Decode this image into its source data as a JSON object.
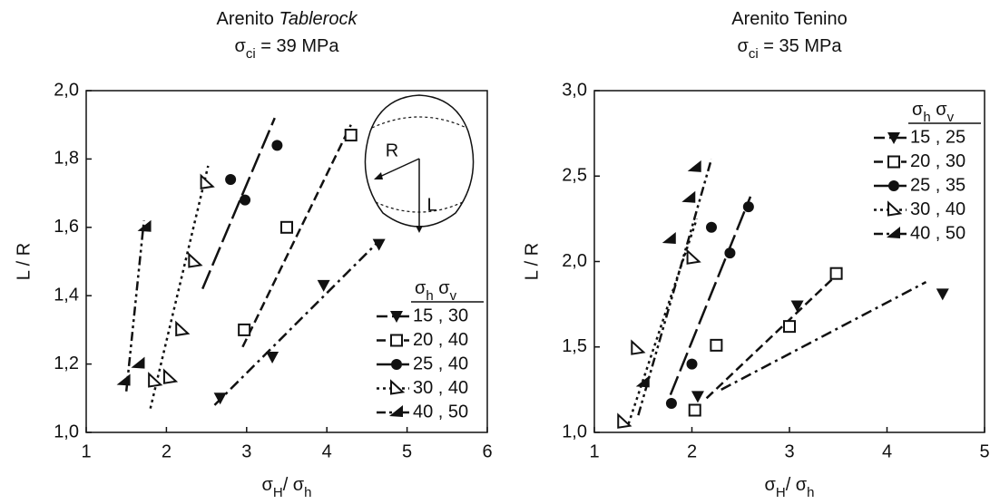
{
  "chart_data": [
    {
      "type": "scatter",
      "title": [
        {
          "text": "Arenito "
        },
        {
          "text": "Tablerock",
          "italic": true
        }
      ],
      "subtitle": [
        {
          "text": "σ"
        },
        {
          "text": "ci",
          "sub": true
        },
        {
          "text": " = 39 MPa"
        }
      ],
      "xlabel": [
        {
          "text": "σ"
        },
        {
          "text": "H",
          "sub": true
        },
        {
          "text": "/ σ"
        },
        {
          "text": "h",
          "sub": true
        }
      ],
      "ylabel": "L / R",
      "xlim": [
        1,
        6
      ],
      "ylim": [
        1.0,
        2.0
      ],
      "xticks": [
        1,
        2,
        3,
        4,
        5,
        6
      ],
      "yticks": [
        {
          "value": 1.0,
          "label": "1,0"
        },
        {
          "value": 1.2,
          "label": "1,2"
        },
        {
          "value": 1.4,
          "label": "1,4"
        },
        {
          "value": 1.6,
          "label": "1,6"
        },
        {
          "value": 1.8,
          "label": "1,8"
        },
        {
          "value": 2.0,
          "label": "2,0"
        }
      ],
      "legend_title": [
        {
          "text": "σ"
        },
        {
          "text": "h",
          "sub": true
        },
        {
          "text": " σ"
        },
        {
          "text": "v",
          "sub": true
        }
      ],
      "legend_loc": "lower right",
      "inset": {
        "labels": [
          "R",
          "L"
        ]
      },
      "series": [
        {
          "name": "15 , 30",
          "color": "#111111",
          "marker": "tri-down",
          "dash": "12,5,3,5",
          "x": [
            2.67,
            3.32,
            3.96,
            4.65
          ],
          "y": [
            1.1,
            1.22,
            1.43,
            1.55
          ],
          "line_x": [
            2.6,
            4.65
          ],
          "line_y": [
            1.08,
            1.56
          ]
        },
        {
          "name": "20 , 40",
          "color": "#111111",
          "marker": "square",
          "dash": "10,5",
          "x": [
            2.97,
            3.5,
            4.3
          ],
          "y": [
            1.3,
            1.6,
            1.87
          ],
          "line_x": [
            2.95,
            4.3
          ],
          "line_y": [
            1.25,
            1.9
          ]
        },
        {
          "name": "25 , 40",
          "color": "#111111",
          "marker": "circle",
          "dash": "22,6",
          "x": [
            2.8,
            2.98,
            3.38
          ],
          "y": [
            1.74,
            1.68,
            1.84
          ],
          "line_x": [
            2.45,
            3.35
          ],
          "line_y": [
            1.42,
            1.92
          ]
        },
        {
          "name": "30 , 40",
          "color": "#111111",
          "marker": "tri-right",
          "dash": "3,4",
          "x": [
            1.85,
            2.04,
            2.19,
            2.35,
            2.5
          ],
          "y": [
            1.15,
            1.16,
            1.3,
            1.5,
            1.73
          ],
          "line_x": [
            1.8,
            2.52
          ],
          "line_y": [
            1.07,
            1.78
          ]
        },
        {
          "name": "40 , 50",
          "color": "#111111",
          "marker": "tri-left",
          "dash": "10,4,3,4,3,4",
          "x": [
            1.47,
            1.65,
            1.73
          ],
          "y": [
            1.15,
            1.2,
            1.6
          ],
          "line_x": [
            1.5,
            1.72
          ],
          "line_y": [
            1.12,
            1.62
          ]
        }
      ]
    },
    {
      "type": "scatter",
      "title": [
        {
          "text": "Arenito Tenino"
        }
      ],
      "subtitle": [
        {
          "text": "σ"
        },
        {
          "text": "ci",
          "sub": true
        },
        {
          "text": " = 35 MPa"
        }
      ],
      "xlabel": [
        {
          "text": "σ"
        },
        {
          "text": "H",
          "sub": true
        },
        {
          "text": "/ σ"
        },
        {
          "text": "h",
          "sub": true
        }
      ],
      "ylabel": "L / R",
      "xlim": [
        1,
        5
      ],
      "ylim": [
        1.0,
        3.0
      ],
      "xticks": [
        1,
        2,
        3,
        4,
        5
      ],
      "yticks": [
        {
          "value": 1.0,
          "label": "1,0"
        },
        {
          "value": 1.5,
          "label": "1,5"
        },
        {
          "value": 2.0,
          "label": "2,0"
        },
        {
          "value": 2.5,
          "label": "2,5"
        },
        {
          "value": 3.0,
          "label": "3,0"
        }
      ],
      "legend_title": [
        {
          "text": "σ"
        },
        {
          "text": "h",
          "sub": true
        },
        {
          "text": " σ"
        },
        {
          "text": "v",
          "sub": true
        }
      ],
      "legend_loc": "upper right",
      "series": [
        {
          "name": "15 , 25",
          "color": "#111111",
          "marker": "tri-down",
          "dash": "12,5,3,5",
          "x": [
            2.06,
            3.08,
            4.57
          ],
          "y": [
            1.21,
            1.74,
            1.81
          ],
          "line_x": [
            2.3,
            4.4
          ],
          "line_y": [
            1.25,
            1.88
          ]
        },
        {
          "name": "20 , 30",
          "color": "#111111",
          "marker": "square",
          "dash": "10,5",
          "x": [
            2.03,
            2.25,
            3.0,
            3.48
          ],
          "y": [
            1.13,
            1.51,
            1.62,
            1.93
          ],
          "line_x": [
            2.15,
            3.5
          ],
          "line_y": [
            1.2,
            1.93
          ]
        },
        {
          "name": "25 , 35",
          "color": "#111111",
          "marker": "circle",
          "dash": "22,6",
          "x": [
            1.79,
            2.0,
            2.2,
            2.39,
            2.58
          ],
          "y": [
            1.17,
            1.4,
            2.2,
            2.05,
            2.32
          ],
          "line_x": [
            1.78,
            2.6
          ],
          "line_y": [
            1.22,
            2.38
          ]
        },
        {
          "name": "30 , 40",
          "color": "#111111",
          "marker": "tri-right",
          "dash": "3,4",
          "x": [
            1.3,
            1.44,
            2.01
          ],
          "y": [
            1.06,
            1.49,
            2.02
          ],
          "line_x": [
            1.35,
            2.05
          ],
          "line_y": [
            1.05,
            2.25
          ]
        },
        {
          "name": "40 , 50",
          "color": "#111111",
          "marker": "tri-left",
          "dash": "10,4,3,4,3,4",
          "x": [
            1.5,
            1.77,
            1.97,
            2.03
          ],
          "y": [
            1.29,
            2.13,
            2.37,
            2.55
          ],
          "line_x": [
            1.45,
            2.2
          ],
          "line_y": [
            1.1,
            2.6
          ]
        }
      ]
    }
  ]
}
